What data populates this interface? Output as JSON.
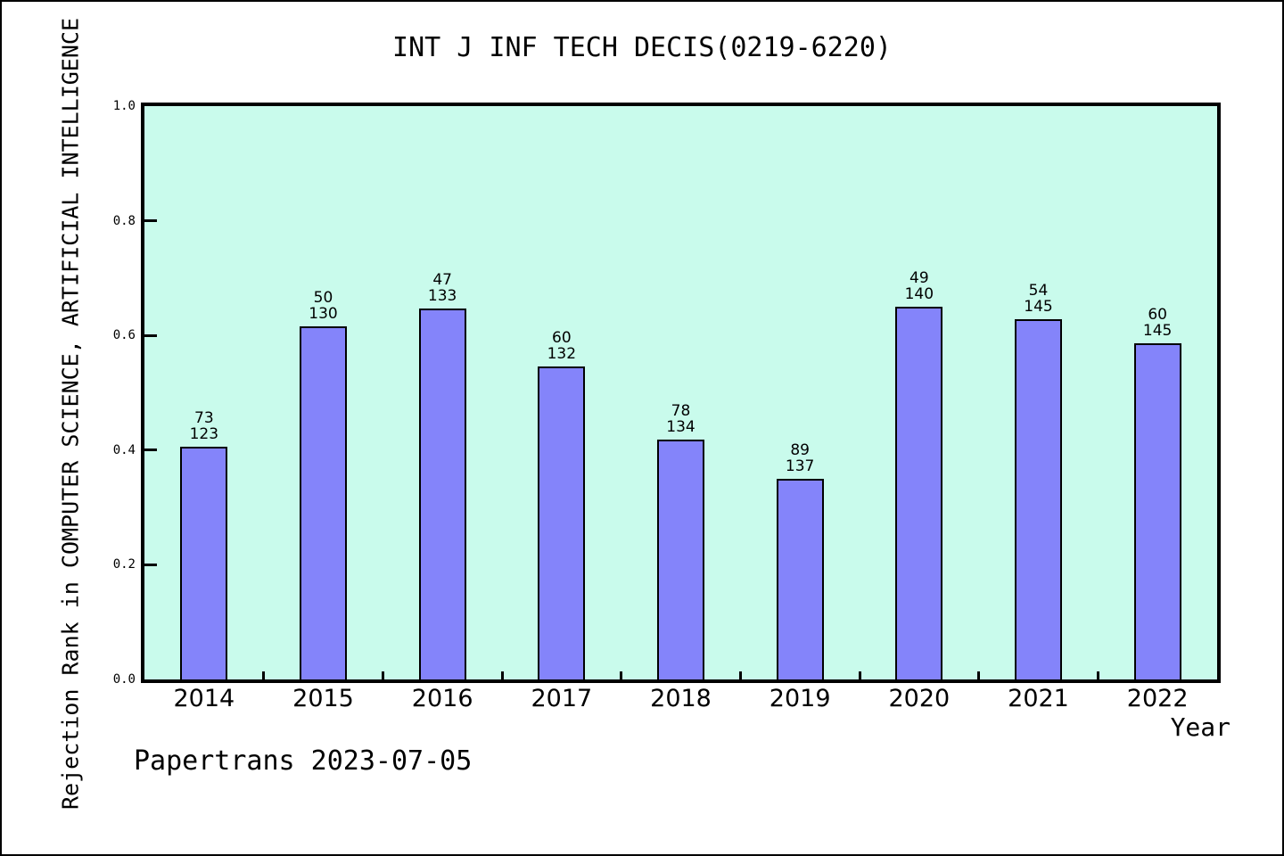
{
  "chart_data": {
    "type": "bar",
    "title": "INT J INF TECH DECIS(0219-6220)",
    "xlabel": "Year",
    "ylabel": "Rejection Rank in COMPUTER SCIENCE, ARTIFICIAL INTELLIGENCE",
    "footer": "Papertrans 2023-07-05",
    "ylim": [
      0.0,
      1.0
    ],
    "grid": false,
    "legend_position": "none",
    "yticks": [
      {
        "label": "0.0",
        "value": 0.0
      },
      {
        "label": "0.2",
        "value": 0.2
      },
      {
        "label": "0.4",
        "value": 0.4
      },
      {
        "label": "0.6",
        "value": 0.6
      },
      {
        "label": "0.8",
        "value": 0.8
      },
      {
        "label": "1.0",
        "value": 1.0
      }
    ],
    "categories": [
      "2014",
      "2015",
      "2016",
      "2017",
      "2018",
      "2019",
      "2020",
      "2021",
      "2022"
    ],
    "bars": [
      {
        "year": "2014",
        "rank": 73,
        "total": 123,
        "value": 0.4065
      },
      {
        "year": "2015",
        "rank": 50,
        "total": 130,
        "value": 0.6154
      },
      {
        "year": "2016",
        "rank": 47,
        "total": 133,
        "value": 0.6466
      },
      {
        "year": "2017",
        "rank": 60,
        "total": 132,
        "value": 0.5455
      },
      {
        "year": "2018",
        "rank": 78,
        "total": 134,
        "value": 0.4179
      },
      {
        "year": "2019",
        "rank": 89,
        "total": 137,
        "value": 0.3504
      },
      {
        "year": "2020",
        "rank": 49,
        "total": 140,
        "value": 0.65
      },
      {
        "year": "2021",
        "rank": 54,
        "total": 145,
        "value": 0.6276
      },
      {
        "year": "2022",
        "rank": 60,
        "total": 145,
        "value": 0.5862
      }
    ],
    "colors": {
      "bar": "#8484fa",
      "bar_border": "#000000",
      "plot_bg": "#c9fbec",
      "frame": "#000000",
      "text": "#000000"
    }
  }
}
